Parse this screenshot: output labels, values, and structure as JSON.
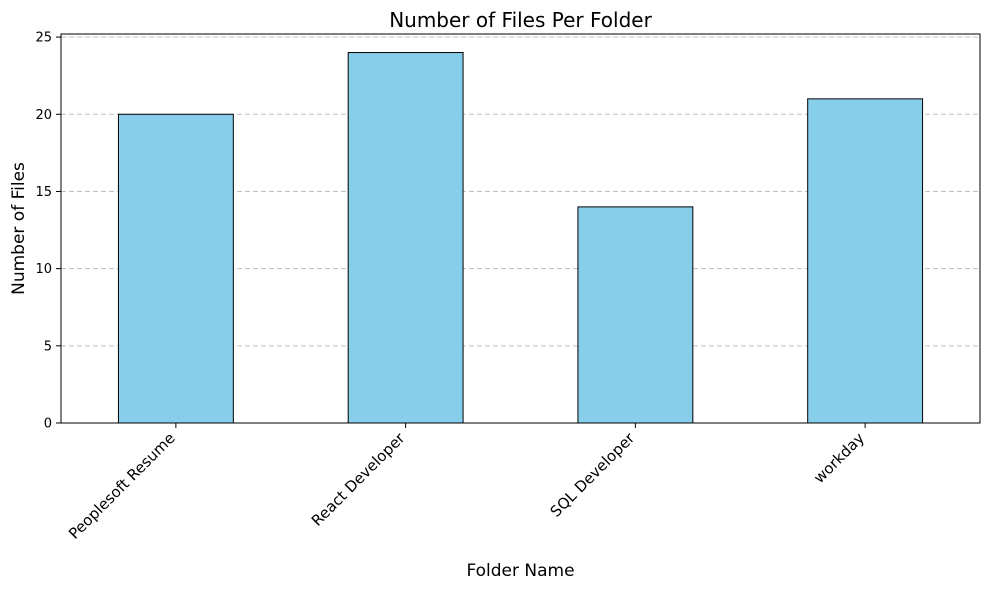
{
  "chart_data": {
    "type": "bar",
    "title": "Number of Files Per Folder",
    "xlabel": "Folder Name",
    "ylabel": "Number of Files",
    "categories": [
      "Peoplesoft Resume",
      "React Developer",
      "SQL Developer",
      "workday"
    ],
    "values": [
      20,
      24,
      14,
      21
    ],
    "ylim": [
      0,
      25.2
    ],
    "yticks": [
      0,
      5,
      10,
      15,
      20,
      25
    ],
    "grid": "y-dashed",
    "bar_color": "#87ceeb",
    "bar_edge_color": "#000000",
    "grid_color": "#c0c0c0"
  }
}
